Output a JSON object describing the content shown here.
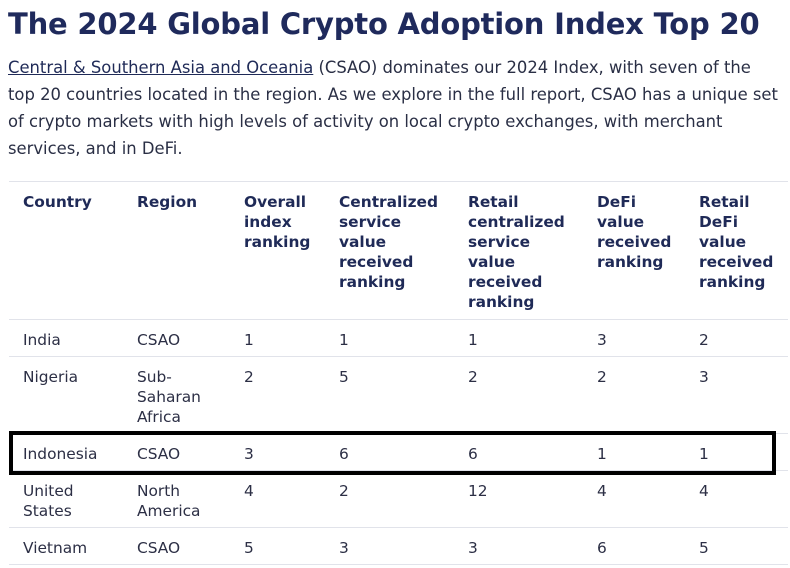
{
  "title": "The 2024 Global Crypto Adoption Index Top 20",
  "intro": {
    "link_text": "Central & Southern Asia and Oceania",
    "body_text": " (CSAO) dominates our 2024 Index, with seven of the top 20 countries located in the region. As we explore in the full report, CSAO has a unique set of crypto markets with high levels of activity on local crypto exchanges, with merchant services, and in DeFi."
  },
  "table": {
    "headers": [
      "Country",
      "Region",
      "Overall index ranking",
      "Centralized service value received ranking",
      "Retail centralized service value received ranking",
      "DeFi value received ranking",
      "Retail DeFi value received ranking"
    ],
    "rows": [
      [
        "India",
        "CSAO",
        "1",
        "1",
        "1",
        "3",
        "2"
      ],
      [
        "Nigeria",
        "Sub-Saharan Africa",
        "2",
        "5",
        "2",
        "2",
        "3"
      ],
      [
        "Indonesia",
        "CSAO",
        "3",
        "6",
        "6",
        "1",
        "1"
      ],
      [
        "United States",
        "North America",
        "4",
        "2",
        "12",
        "4",
        "4"
      ],
      [
        "Vietnam",
        "CSAO",
        "5",
        "3",
        "3",
        "6",
        "5"
      ]
    ],
    "highlighted_row": "Indonesia"
  }
}
